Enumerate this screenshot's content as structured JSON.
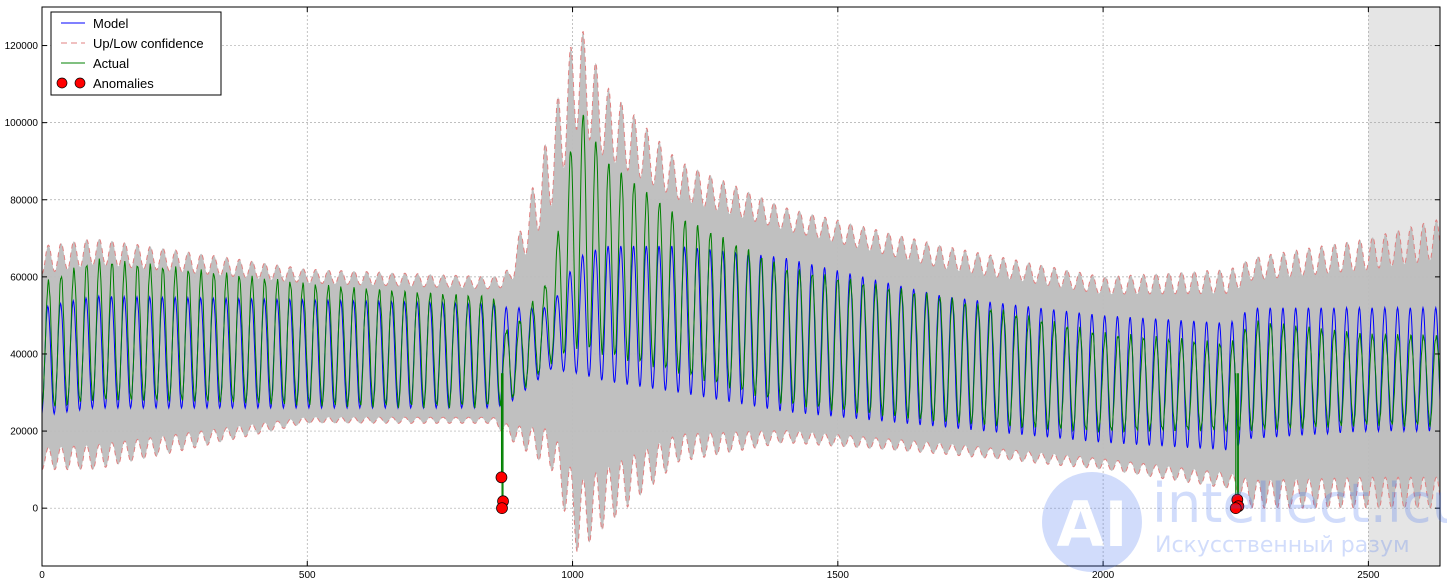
{
  "chart_data": {
    "type": "line",
    "title": "",
    "xlabel": "",
    "ylabel": "",
    "xlim": [
      0,
      2635
    ],
    "ylim": [
      -15000,
      130000
    ],
    "x_ticks": [
      0,
      500,
      1000,
      1500,
      2000,
      2500
    ],
    "y_ticks": [
      0,
      20000,
      40000,
      60000,
      80000,
      100000,
      120000
    ],
    "grid": true,
    "legend_position": "top-left",
    "shaded_region": {
      "x_start": 2500,
      "x_end": 2635,
      "color": "#e5e5e5"
    },
    "cycle_length": 24,
    "series": [
      {
        "name": "Model",
        "color": "#0000ff",
        "style": "solid"
      },
      {
        "name": "Up/Low confidence",
        "color": "#e08080",
        "style": "dashed"
      },
      {
        "name": "Actual",
        "color": "#008000",
        "style": "solid"
      },
      {
        "name": "Anomalies",
        "color": "#ff0000",
        "style": "marker"
      }
    ],
    "profile_x": [
      0,
      100,
      500,
      850,
      880,
      960,
      1010,
      1060,
      1200,
      1400,
      1700,
      2000,
      2240,
      2280,
      2500,
      2635
    ],
    "actual_peak": [
      58000,
      64000,
      58000,
      55000,
      45000,
      60000,
      105000,
      90000,
      75000,
      62000,
      55000,
      45000,
      42000,
      48000,
      45000,
      45000
    ],
    "actual_trough": [
      26000,
      28000,
      27000,
      27000,
      28000,
      38000,
      42000,
      40000,
      35000,
      27000,
      23000,
      20000,
      20000,
      20000,
      22000,
      22000
    ],
    "model_peak": [
      52000,
      55000,
      54000,
      53000,
      52000,
      52000,
      65000,
      68000,
      68000,
      65000,
      55000,
      50000,
      48000,
      52000,
      52000,
      52000
    ],
    "model_trough": [
      24000,
      26000,
      26000,
      26000,
      27000,
      36000,
      35000,
      33000,
      30000,
      25000,
      21000,
      17000,
      15000,
      18000,
      20000,
      20000
    ],
    "band_upper": [
      68000,
      70000,
      62000,
      60000,
      62000,
      100000,
      127000,
      110000,
      90000,
      78000,
      68000,
      60000,
      62000,
      65000,
      70000,
      75000
    ],
    "band_lower": [
      10000,
      10000,
      22000,
      22000,
      18000,
      10000,
      -12000,
      -5000,
      12000,
      17000,
      14000,
      10000,
      5000,
      0,
      0,
      0
    ],
    "anomalies": [
      {
        "x": 866,
        "y": 8000
      },
      {
        "x": 869,
        "y": 1800
      },
      {
        "x": 867,
        "y": 0
      },
      {
        "x": 2253,
        "y": 2200
      },
      {
        "x": 2255,
        "y": 500
      },
      {
        "x": 2250,
        "y": 0
      }
    ]
  },
  "legend": {
    "items": [
      {
        "label": "Model"
      },
      {
        "label": "Up/Low confidence"
      },
      {
        "label": "Actual"
      },
      {
        "label": "Anomalies"
      }
    ]
  },
  "watermark": {
    "brand": "intellect.icu",
    "tagline": "Искусственный разум",
    "logo_letters": "AI"
  }
}
